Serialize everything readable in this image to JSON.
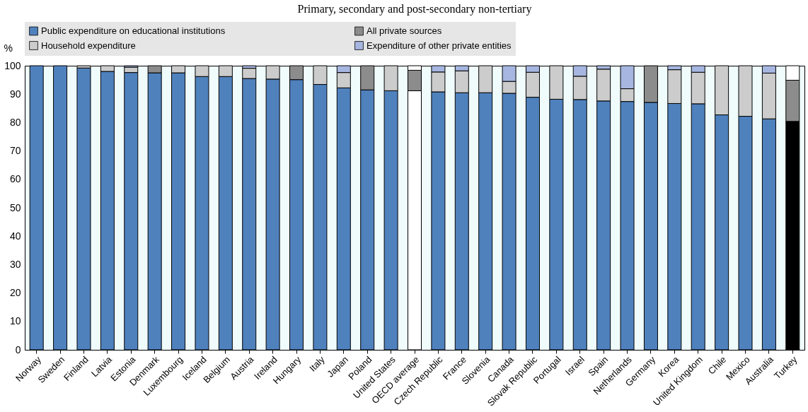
{
  "chart_data": {
    "type": "bar",
    "stacked": true,
    "title": "Primary, secondary and post-secondary non-tertiary",
    "ylabel": "%",
    "categories": [
      "Norway",
      "Sweden",
      "Finland",
      "Latvia",
      "Estonia",
      "Denmark",
      "Luxembourg",
      "Iceland",
      "Belgium",
      "Austria",
      "Ireland",
      "Hungary",
      "Italy",
      "Japan",
      "Poland",
      "United States",
      "OECD average",
      "Czech Republic",
      "France",
      "Slovenia",
      "Canada",
      "Slovak Republic",
      "Portugal",
      "Israel",
      "Spain",
      "Netherlands",
      "Germany",
      "Korea",
      "United Kingdom",
      "Chile",
      "Mexico",
      "Australia",
      "Turkey"
    ],
    "series": [
      {
        "name": "Public expenditure on educational institutions",
        "color": "#4f81bd",
        "colors": [
          "#4f81bd",
          "#4f81bd",
          "#4f81bd",
          "#4f81bd",
          "#4f81bd",
          "#4f81bd",
          "#4f81bd",
          "#4f81bd",
          "#4f81bd",
          "#4f81bd",
          "#4f81bd",
          "#4f81bd",
          "#4f81bd",
          "#4f81bd",
          "#4f81bd",
          "#4f81bd",
          "#ffffff",
          "#4f81bd",
          "#4f81bd",
          "#4f81bd",
          "#4f81bd",
          "#4f81bd",
          "#4f81bd",
          "#4f81bd",
          "#4f81bd",
          "#4f81bd",
          "#4f81bd",
          "#4f81bd",
          "#4f81bd",
          "#4f81bd",
          "#4f81bd",
          "#4f81bd",
          "#000000"
        ],
        "values": [
          100,
          100,
          99.2,
          98,
          97.6,
          97.5,
          97.5,
          96.2,
          96.2,
          95.5,
          95.3,
          95.1,
          93.4,
          92.2,
          91.5,
          91.2,
          91.2,
          90.8,
          90.5,
          90.5,
          90.3,
          88.9,
          88.2,
          88.1,
          87.6,
          87.4,
          87.1,
          86.7,
          86.6,
          82.7,
          82.2,
          81.3,
          80.4
        ]
      },
      {
        "name": "All private sources",
        "color": "#8c8c8c",
        "values": [
          null,
          null,
          null,
          null,
          null,
          2.5,
          null,
          null,
          null,
          null,
          null,
          4.9,
          null,
          null,
          8.5,
          null,
          7.2,
          null,
          null,
          null,
          null,
          null,
          null,
          null,
          null,
          null,
          12.9,
          null,
          null,
          null,
          null,
          null,
          14.5
        ]
      },
      {
        "name": "Household expenditure",
        "color": "#cccccc",
        "colors": [
          "#cccccc",
          "#cccccc",
          "#cccccc",
          "#cccccc",
          "#cccccc",
          "#cccccc",
          "#cccccc",
          "#cccccc",
          "#cccccc",
          "#cccccc",
          "#cccccc",
          "#cccccc",
          "#cccccc",
          "#cccccc",
          "#cccccc",
          "#cccccc",
          "#ffffff",
          "#cccccc",
          "#cccccc",
          "#cccccc",
          "#cccccc",
          "#cccccc",
          "#cccccc",
          "#cccccc",
          "#cccccc",
          "#cccccc",
          "#cccccc",
          "#cccccc",
          "#cccccc",
          "#cccccc",
          "#cccccc",
          "#cccccc",
          "#ffffff"
        ],
        "values": [
          null,
          null,
          0.8,
          2,
          1.9,
          null,
          2.5,
          3.8,
          3.8,
          3.6,
          4.7,
          null,
          6.6,
          5.4,
          null,
          8.8,
          1.6,
          7,
          7.7,
          9.5,
          4.2,
          8.8,
          11.8,
          8.2,
          11.2,
          4.5,
          null,
          11.9,
          11.1,
          17.3,
          17.8,
          16.1,
          5.1
        ]
      },
      {
        "name": "Expenditure of other private entities",
        "color": "#a6b6e0",
        "values": [
          null,
          null,
          null,
          null,
          0.5,
          null,
          null,
          null,
          null,
          0.9,
          null,
          null,
          null,
          2.4,
          null,
          null,
          null,
          2.2,
          1.8,
          null,
          5.5,
          2.3,
          null,
          3.7,
          1.2,
          8.1,
          null,
          1.4,
          2.3,
          null,
          null,
          2.6,
          null
        ]
      }
    ],
    "ylim": [
      0,
      100
    ],
    "yticks": [
      0,
      10,
      20,
      30,
      40,
      50,
      60,
      70,
      80,
      90,
      100
    ],
    "grid": false,
    "legend": "top"
  }
}
